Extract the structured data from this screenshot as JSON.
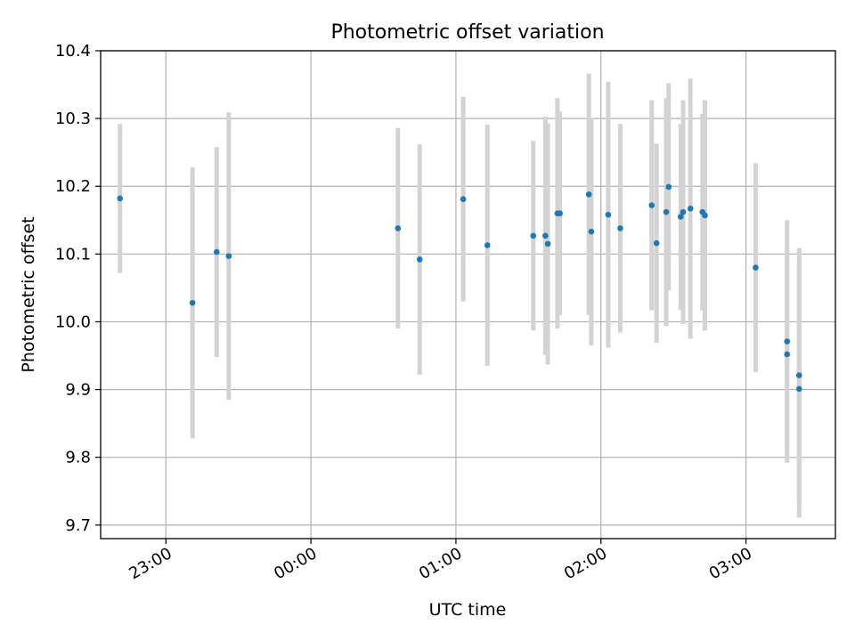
{
  "chart_data": {
    "type": "scatter",
    "title": "Photometric offset variation",
    "xlabel": "UTC time",
    "ylabel": "Photometric offset",
    "x_axis_kind": "time (UTC, hours)",
    "xlim": [
      "22:33",
      "03:37"
    ],
    "ylim": [
      9.68,
      10.4
    ],
    "x_ticks": [
      "23:00",
      "00:00",
      "01:00",
      "02:00",
      "03:00"
    ],
    "y_ticks": [
      "9.7",
      "9.8",
      "9.9",
      "10.0",
      "10.1",
      "10.2",
      "10.3",
      "10.4"
    ],
    "grid": true,
    "legend": "none",
    "colors": {
      "points": "#1f77b4",
      "error_bars": "#d3d3d3",
      "grid": "#b0b0b0"
    },
    "points": [
      {
        "x": "22:41",
        "y": 10.182,
        "yerr": 0.11
      },
      {
        "x": "23:11",
        "y": 10.028,
        "yerr": 0.2
      },
      {
        "x": "23:21",
        "y": 10.103,
        "yerr": 0.155
      },
      {
        "x": "23:26",
        "y": 10.097,
        "yerr": 0.212
      },
      {
        "x": "00:36",
        "y": 10.138,
        "yerr": 0.148
      },
      {
        "x": "00:45",
        "y": 10.092,
        "yerr": 0.17
      },
      {
        "x": "01:03",
        "y": 10.181,
        "yerr": 0.151
      },
      {
        "x": "01:13",
        "y": 10.113,
        "yerr": 0.178
      },
      {
        "x": "01:32",
        "y": 10.127,
        "yerr": 0.14
      },
      {
        "x": "01:37",
        "y": 10.127,
        "yerr": 0.176
      },
      {
        "x": "01:38",
        "y": 10.115,
        "yerr": 0.178
      },
      {
        "x": "01:42",
        "y": 10.16,
        "yerr": 0.17
      },
      {
        "x": "01:43",
        "y": 10.16,
        "yerr": 0.15
      },
      {
        "x": "01:55",
        "y": 10.188,
        "yerr": 0.178
      },
      {
        "x": "01:56",
        "y": 10.133,
        "yerr": 0.168
      },
      {
        "x": "02:03",
        "y": 10.158,
        "yerr": 0.196
      },
      {
        "x": "02:08",
        "y": 10.138,
        "yerr": 0.154
      },
      {
        "x": "02:21",
        "y": 10.172,
        "yerr": 0.155
      },
      {
        "x": "02:23",
        "y": 10.116,
        "yerr": 0.147
      },
      {
        "x": "02:27",
        "y": 10.162,
        "yerr": 0.168
      },
      {
        "x": "02:28",
        "y": 10.199,
        "yerr": 0.153
      },
      {
        "x": "02:33",
        "y": 10.155,
        "yerr": 0.137
      },
      {
        "x": "02:34",
        "y": 10.162,
        "yerr": 0.165
      },
      {
        "x": "02:37",
        "y": 10.167,
        "yerr": 0.192
      },
      {
        "x": "02:42",
        "y": 10.162,
        "yerr": 0.145
      },
      {
        "x": "02:43",
        "y": 10.157,
        "yerr": 0.17
      },
      {
        "x": "03:04",
        "y": 10.08,
        "yerr": 0.154
      },
      {
        "x": "03:17",
        "y": 9.971,
        "yerr": 0.179
      },
      {
        "x": "03:17",
        "y": 9.952,
        "yerr": 0.145
      },
      {
        "x": "03:22",
        "y": 9.921,
        "yerr": 0.188
      },
      {
        "x": "03:22",
        "y": 9.901,
        "yerr": 0.19
      }
    ]
  }
}
